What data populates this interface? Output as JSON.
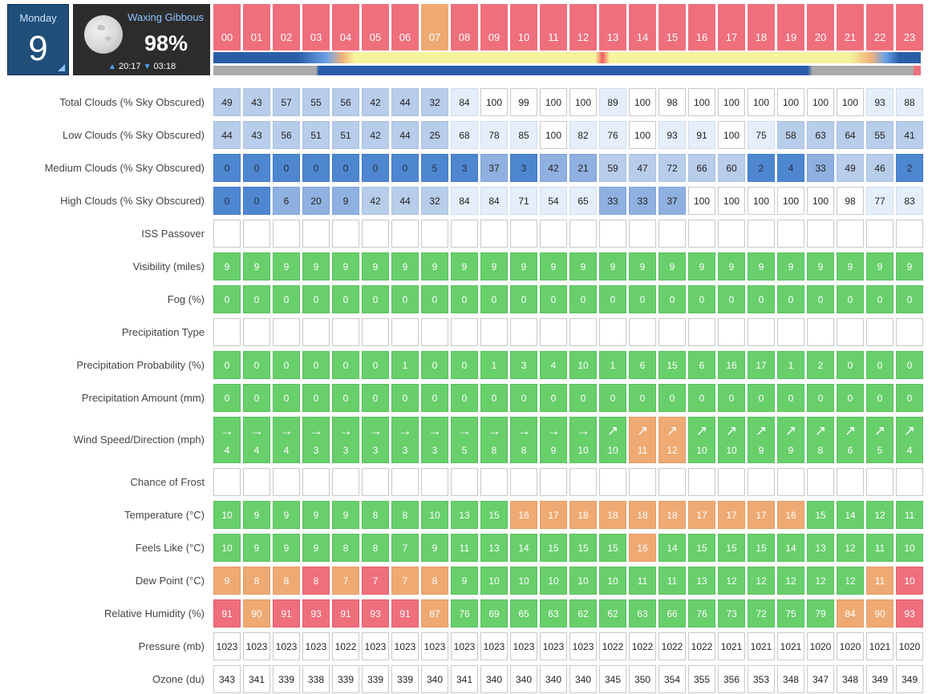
{
  "header": {
    "day_name": "Monday",
    "day_number": "9",
    "moon_phase": "Waxing Gibbous",
    "moon_illumination": "98%",
    "moonrise_time": "20:17",
    "moonset_time": "03:18",
    "hours": [
      "00",
      "01",
      "02",
      "03",
      "04",
      "05",
      "06",
      "07",
      "08",
      "09",
      "10",
      "11",
      "12",
      "13",
      "14",
      "15",
      "16",
      "17",
      "18",
      "19",
      "20",
      "21",
      "22",
      "23"
    ],
    "hour_colors": [
      "red",
      "red",
      "red",
      "red",
      "red",
      "red",
      "red",
      "orange",
      "red",
      "red",
      "red",
      "red",
      "red",
      "red",
      "red",
      "red",
      "red",
      "red",
      "red",
      "red",
      "red",
      "red",
      "red",
      "red"
    ]
  },
  "rows": [
    {
      "label": "Total Clouds (% Sky Obscured)",
      "values": [
        "49",
        "43",
        "57",
        "55",
        "56",
        "42",
        "44",
        "32",
        "84",
        "100",
        "99",
        "100",
        "100",
        "89",
        "100",
        "98",
        "100",
        "100",
        "100",
        "100",
        "100",
        "100",
        "93",
        "88"
      ],
      "colors": [
        "l",
        "l",
        "l",
        "l",
        "l",
        "l",
        "l",
        "l",
        "vl",
        "w",
        "w",
        "w",
        "w",
        "vl",
        "w",
        "w",
        "w",
        "w",
        "w",
        "w",
        "w",
        "w",
        "vl",
        "vl"
      ]
    },
    {
      "label": "Low Clouds (% Sky Obscured)",
      "values": [
        "44",
        "43",
        "56",
        "51",
        "51",
        "42",
        "44",
        "25",
        "68",
        "78",
        "85",
        "100",
        "82",
        "76",
        "100",
        "93",
        "91",
        "100",
        "75",
        "58",
        "63",
        "64",
        "55",
        "41"
      ],
      "colors": [
        "l",
        "l",
        "l",
        "l",
        "l",
        "l",
        "l",
        "l",
        "vl",
        "vl",
        "vl",
        "w",
        "vl",
        "vl",
        "w",
        "vl",
        "vl",
        "w",
        "vl",
        "l",
        "l",
        "l",
        "l",
        "l"
      ]
    },
    {
      "label": "Medium Clouds (% Sky Obscured)",
      "values": [
        "0",
        "0",
        "0",
        "0",
        "0",
        "0",
        "0",
        "5",
        "3",
        "37",
        "3",
        "42",
        "21",
        "59",
        "47",
        "72",
        "66",
        "60",
        "2",
        "4",
        "33",
        "49",
        "46",
        "2"
      ],
      "colors": [
        "d",
        "d",
        "d",
        "d",
        "d",
        "d",
        "d",
        "d",
        "d",
        "m",
        "d",
        "m",
        "m",
        "l",
        "l",
        "l",
        "l",
        "l",
        "d",
        "d",
        "m",
        "l",
        "l",
        "d"
      ]
    },
    {
      "label": "High Clouds (% Sky Obscured)",
      "values": [
        "0",
        "0",
        "6",
        "20",
        "9",
        "42",
        "44",
        "32",
        "84",
        "84",
        "71",
        "54",
        "65",
        "33",
        "33",
        "37",
        "100",
        "100",
        "100",
        "100",
        "100",
        "98",
        "77",
        "83"
      ],
      "colors": [
        "d",
        "d",
        "m",
        "m",
        "m",
        "l",
        "l",
        "l",
        "vl",
        "vl",
        "vl",
        "vl",
        "vl",
        "m",
        "m",
        "m",
        "w",
        "w",
        "w",
        "w",
        "w",
        "w",
        "vl",
        "vl"
      ]
    },
    {
      "label": "ISS Passover",
      "values": [
        "",
        "",
        "",
        "",
        "",
        "",
        "",
        "",
        "",
        "",
        "",
        "",
        "",
        "",
        "",
        "",
        "",
        "",
        "",
        "",
        "",
        "",
        "",
        ""
      ],
      "colors": [
        "w",
        "w",
        "w",
        "w",
        "w",
        "w",
        "w",
        "w",
        "w",
        "w",
        "w",
        "w",
        "w",
        "w",
        "w",
        "w",
        "w",
        "w",
        "w",
        "w",
        "w",
        "w",
        "w",
        "w"
      ]
    },
    {
      "label": "Visibility (miles)",
      "values": [
        "9",
        "9",
        "9",
        "9",
        "9",
        "9",
        "9",
        "9",
        "9",
        "9",
        "9",
        "9",
        "9",
        "9",
        "9",
        "9",
        "9",
        "9",
        "9",
        "9",
        "9",
        "9",
        "9",
        "9"
      ],
      "colors": [
        "g",
        "g",
        "g",
        "g",
        "g",
        "g",
        "g",
        "g",
        "g",
        "g",
        "g",
        "g",
        "g",
        "g",
        "g",
        "g",
        "g",
        "g",
        "g",
        "g",
        "g",
        "g",
        "g",
        "g"
      ]
    },
    {
      "label": "Fog (%)",
      "values": [
        "0",
        "0",
        "0",
        "0",
        "0",
        "0",
        "0",
        "0",
        "0",
        "0",
        "0",
        "0",
        "0",
        "0",
        "0",
        "0",
        "0",
        "0",
        "0",
        "0",
        "0",
        "0",
        "0",
        "0"
      ],
      "colors": [
        "g",
        "g",
        "g",
        "g",
        "g",
        "g",
        "g",
        "g",
        "g",
        "g",
        "g",
        "g",
        "g",
        "g",
        "g",
        "g",
        "g",
        "g",
        "g",
        "g",
        "g",
        "g",
        "g",
        "g"
      ]
    },
    {
      "label": "Precipitation Type",
      "values": [
        "",
        "",
        "",
        "",
        "",
        "",
        "",
        "",
        "",
        "",
        "",
        "",
        "",
        "",
        "",
        "",
        "",
        "",
        "",
        "",
        "",
        "",
        "",
        ""
      ],
      "colors": [
        "w",
        "w",
        "w",
        "w",
        "w",
        "w",
        "w",
        "w",
        "w",
        "w",
        "w",
        "w",
        "w",
        "w",
        "w",
        "w",
        "w",
        "w",
        "w",
        "w",
        "w",
        "w",
        "w",
        "w"
      ]
    },
    {
      "label": "Precipitation Probability (%)",
      "values": [
        "0",
        "0",
        "0",
        "0",
        "0",
        "0",
        "1",
        "0",
        "0",
        "1",
        "3",
        "4",
        "10",
        "1",
        "6",
        "15",
        "6",
        "16",
        "17",
        "1",
        "2",
        "0",
        "0",
        "0"
      ],
      "colors": [
        "g",
        "g",
        "g",
        "g",
        "g",
        "g",
        "g",
        "g",
        "g",
        "g",
        "g",
        "g",
        "g",
        "g",
        "g",
        "g",
        "g",
        "g",
        "g",
        "g",
        "g",
        "g",
        "g",
        "g"
      ]
    },
    {
      "label": "Precipitation Amount (mm)",
      "values": [
        "0",
        "0",
        "0",
        "0",
        "0",
        "0",
        "0",
        "0",
        "0",
        "0",
        "0",
        "0",
        "0",
        "0",
        "0",
        "0",
        "0",
        "0",
        "0",
        "0",
        "0",
        "0",
        "0",
        "0"
      ],
      "colors": [
        "g",
        "g",
        "g",
        "g",
        "g",
        "g",
        "g",
        "g",
        "g",
        "g",
        "g",
        "g",
        "g",
        "g",
        "g",
        "g",
        "g",
        "g",
        "g",
        "g",
        "g",
        "g",
        "g",
        "g"
      ]
    },
    {
      "label": "Wind Speed/Direction (mph)",
      "type": "wind",
      "values": [
        "4",
        "4",
        "4",
        "3",
        "3",
        "3",
        "3",
        "3",
        "5",
        "8",
        "8",
        "9",
        "10",
        "10",
        "11",
        "12",
        "10",
        "10",
        "9",
        "9",
        "8",
        "6",
        "5",
        "4"
      ],
      "arrows": [
        "→",
        "→",
        "→",
        "→",
        "→",
        "→",
        "→",
        "→",
        "→",
        "→",
        "→",
        "→",
        "→",
        "↗",
        "↗",
        "↗",
        "↗",
        "↗",
        "↗",
        "↗",
        "↗",
        "↗",
        "↗",
        "↗"
      ],
      "colors": [
        "g",
        "g",
        "g",
        "g",
        "g",
        "g",
        "g",
        "g",
        "g",
        "g",
        "g",
        "g",
        "g",
        "g",
        "o",
        "o",
        "g",
        "g",
        "g",
        "g",
        "g",
        "g",
        "g",
        "g"
      ]
    },
    {
      "label": "Chance of Frost",
      "values": [
        "",
        "",
        "",
        "",
        "",
        "",
        "",
        "",
        "",
        "",
        "",
        "",
        "",
        "",
        "",
        "",
        "",
        "",
        "",
        "",
        "",
        "",
        "",
        ""
      ],
      "colors": [
        "w",
        "w",
        "w",
        "w",
        "w",
        "w",
        "w",
        "w",
        "w",
        "w",
        "w",
        "w",
        "w",
        "w",
        "w",
        "w",
        "w",
        "w",
        "w",
        "w",
        "w",
        "w",
        "w",
        "w"
      ]
    },
    {
      "label": "Temperature (°C)",
      "values": [
        "10",
        "9",
        "9",
        "9",
        "9",
        "8",
        "8",
        "10",
        "13",
        "15",
        "16",
        "17",
        "18",
        "18",
        "18",
        "18",
        "17",
        "17",
        "17",
        "16",
        "15",
        "14",
        "12",
        "11"
      ],
      "colors": [
        "g",
        "g",
        "g",
        "g",
        "g",
        "g",
        "g",
        "g",
        "g",
        "g",
        "o",
        "o",
        "o",
        "o",
        "o",
        "o",
        "o",
        "o",
        "o",
        "o",
        "g",
        "g",
        "g",
        "g"
      ]
    },
    {
      "label": "Feels Like (°C)",
      "values": [
        "10",
        "9",
        "9",
        "9",
        "8",
        "8",
        "7",
        "9",
        "11",
        "13",
        "14",
        "15",
        "15",
        "15",
        "16",
        "14",
        "15",
        "15",
        "15",
        "14",
        "13",
        "12",
        "11",
        "10"
      ],
      "colors": [
        "g",
        "g",
        "g",
        "g",
        "g",
        "g",
        "g",
        "g",
        "g",
        "g",
        "g",
        "g",
        "g",
        "g",
        "o",
        "g",
        "g",
        "g",
        "g",
        "g",
        "g",
        "g",
        "g",
        "g"
      ]
    },
    {
      "label": "Dew Point (°C)",
      "values": [
        "9",
        "8",
        "8",
        "8",
        "7",
        "7",
        "7",
        "8",
        "9",
        "10",
        "10",
        "10",
        "10",
        "10",
        "11",
        "11",
        "13",
        "12",
        "12",
        "12",
        "12",
        "12",
        "11",
        "10"
      ],
      "colors": [
        "o",
        "o",
        "o",
        "r",
        "o",
        "r",
        "o",
        "o",
        "g",
        "g",
        "g",
        "g",
        "g",
        "g",
        "g",
        "g",
        "g",
        "g",
        "g",
        "g",
        "g",
        "g",
        "o",
        "r"
      ]
    },
    {
      "label": "Relative Humidity (%)",
      "values": [
        "91",
        "90",
        "91",
        "93",
        "91",
        "93",
        "91",
        "87",
        "76",
        "69",
        "65",
        "63",
        "62",
        "62",
        "63",
        "66",
        "76",
        "73",
        "72",
        "75",
        "79",
        "84",
        "90",
        "93"
      ],
      "colors": [
        "r",
        "o",
        "r",
        "r",
        "r",
        "r",
        "r",
        "o",
        "g",
        "g",
        "g",
        "g",
        "g",
        "g",
        "g",
        "g",
        "g",
        "g",
        "g",
        "g",
        "g",
        "o",
        "o",
        "r"
      ]
    },
    {
      "label": "Pressure (mb)",
      "values": [
        "1023",
        "1023",
        "1023",
        "1023",
        "1022",
        "1023",
        "1023",
        "1023",
        "1023",
        "1023",
        "1023",
        "1023",
        "1023",
        "1022",
        "1022",
        "1022",
        "1022",
        "1021",
        "1021",
        "1021",
        "1020",
        "1020",
        "1021",
        "1020"
      ],
      "colors": [
        "w",
        "w",
        "w",
        "w",
        "w",
        "w",
        "w",
        "w",
        "w",
        "w",
        "w",
        "w",
        "w",
        "w",
        "w",
        "w",
        "w",
        "w",
        "w",
        "w",
        "w",
        "w",
        "w",
        "w"
      ]
    },
    {
      "label": "Ozone (du)",
      "values": [
        "343",
        "341",
        "339",
        "338",
        "339",
        "339",
        "339",
        "340",
        "341",
        "340",
        "340",
        "340",
        "340",
        "345",
        "350",
        "354",
        "355",
        "356",
        "353",
        "348",
        "347",
        "348",
        "349",
        "349"
      ],
      "colors": [
        "w",
        "w",
        "w",
        "w",
        "w",
        "w",
        "w",
        "w",
        "w",
        "w",
        "w",
        "w",
        "w",
        "w",
        "w",
        "w",
        "w",
        "w",
        "w",
        "w",
        "w",
        "w",
        "w",
        "w"
      ]
    }
  ]
}
